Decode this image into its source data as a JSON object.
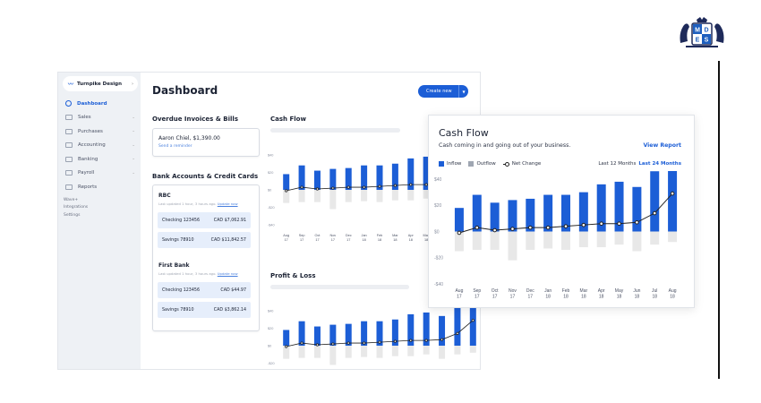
{
  "logo": {
    "letters": [
      "M",
      "D",
      "E",
      "S"
    ]
  },
  "app": {
    "business_name": "Turnpike Design",
    "nav": [
      {
        "label": "Dashboard",
        "icon": "dashboard-icon",
        "active": true
      },
      {
        "label": "Sales",
        "icon": "sales-icon"
      },
      {
        "label": "Purchases",
        "icon": "purchases-icon"
      },
      {
        "label": "Accounting",
        "icon": "accounting-icon"
      },
      {
        "label": "Banking",
        "icon": "banking-icon"
      },
      {
        "label": "Payroll",
        "icon": "payroll-icon"
      },
      {
        "label": "Reports",
        "icon": "reports-icon"
      }
    ],
    "nav_extra": [
      "Wave+",
      "Integrations",
      "Settings"
    ],
    "title": "Dashboard",
    "create_label": "Create new",
    "overdue": {
      "title": "Overdue Invoices & Bills",
      "name": "Aaron Chiel, $1,390.00",
      "link": "Send a reminder"
    },
    "banks_title": "Bank Accounts & Credit Cards",
    "banks": [
      {
        "name": "RBC",
        "updated": "Last updated 1 hour, 3 hours ago.",
        "update_link": "Update now",
        "accounts": [
          {
            "name": "Checking 123456",
            "amount": "CAD $7,062.91"
          },
          {
            "name": "Savings 78910",
            "amount": "CAD $11,842.57"
          }
        ]
      },
      {
        "name": "First Bank",
        "updated": "Last updated 1 hour, 3 hours ago.",
        "update_link": "Update now",
        "accounts": [
          {
            "name": "Checking 123456",
            "amount": "CAD $44.97"
          },
          {
            "name": "Savings 78910",
            "amount": "CAD $3,862.14"
          }
        ]
      }
    ],
    "cashflow_title": "Cash Flow",
    "pl_title": "Profit & Loss"
  },
  "cashflow_card": {
    "title": "Cash Flow",
    "subtitle": "Cash coming in and going out of your business.",
    "view_report": "View Report",
    "legend": {
      "inflow": "Inflow",
      "outflow": "Outflow",
      "net": "Net Change"
    },
    "range_label": "Last 12 Months",
    "range_selected": "Last 24 Months",
    "colors": {
      "inflow": "#1c5ed6",
      "outflow": "#e8e8e8",
      "net": "#222222",
      "accent": "#1c5ed6"
    }
  },
  "chart_data": [
    {
      "type": "bar",
      "title": "Cash Flow",
      "categories": [
        "Aug 17",
        "Sep 17",
        "Oct 17",
        "Nov 17",
        "Dec 17",
        "Jan 18",
        "Feb 18",
        "Mar 18",
        "Apr 18",
        "May 18",
        "Jun 18",
        "Jul 18",
        "Aug 18"
      ],
      "tick_labels_top": [
        "Aug",
        "Sep",
        "Oct",
        "Nov",
        "Dec",
        "Jan",
        "Feb",
        "Mar",
        "Apr",
        "May",
        "Jun",
        "Jul",
        "Aug"
      ],
      "tick_labels_bottom": [
        "17",
        "17",
        "17",
        "17",
        "17",
        "18",
        "18",
        "18",
        "18",
        "18",
        "18",
        "18",
        "18"
      ],
      "series": [
        {
          "name": "Inflow",
          "values": [
            18,
            28,
            22,
            24,
            25,
            28,
            28,
            30,
            36,
            38,
            34,
            46,
            50
          ]
        },
        {
          "name": "Outflow",
          "values": [
            -15,
            -14,
            -14,
            -22,
            -14,
            -13,
            -14,
            -12,
            -12,
            -10,
            -15,
            -10,
            -8
          ]
        },
        {
          "name": "Net Change",
          "values": [
            -1,
            3,
            1,
            2,
            3,
            3,
            4,
            5,
            6,
            6,
            7,
            14,
            29
          ]
        }
      ],
      "ylim": [
        -40,
        40
      ],
      "yticks": [
        "$40",
        "$20",
        "$0",
        "-$20",
        "-$40"
      ]
    }
  ]
}
